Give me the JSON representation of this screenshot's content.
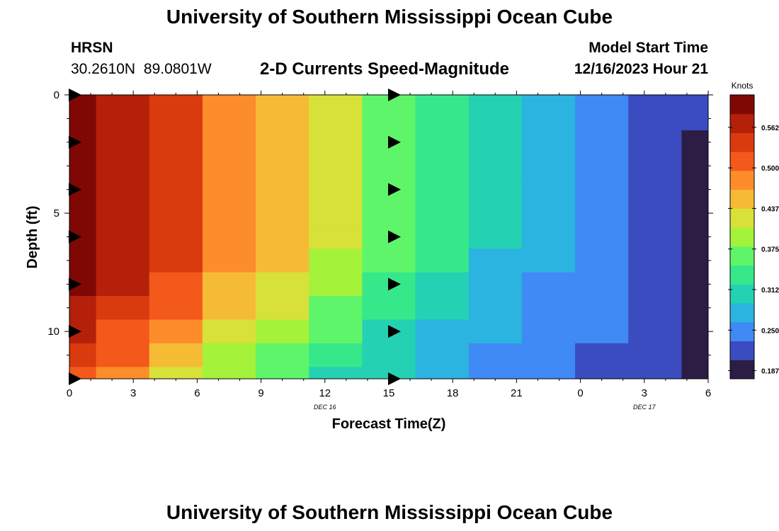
{
  "header": {
    "title": "University of Southern Mississippi Ocean Cube",
    "station": "HRSN",
    "coords": "30.2610N  89.0801W",
    "subtitle": "2-D Currents Speed-Magnitude",
    "model_label": "Model Start Time",
    "model_time": "12/16/2023 Hour 21"
  },
  "footer": {
    "title": "University of Southern Mississippi Ocean Cube"
  },
  "chart_data": {
    "type": "heatmap",
    "xlabel": "Forecast Time(Z)",
    "ylabel": "Depth (ft)",
    "x_tick_labels": [
      "0",
      "3",
      "6",
      "9",
      "12",
      "15",
      "18",
      "21",
      "0",
      "3",
      "6"
    ],
    "x_tick_hours": [
      0,
      3,
      6,
      9,
      12,
      15,
      18,
      21,
      24,
      27,
      30
    ],
    "x_range_hours": [
      0,
      30
    ],
    "date_labels": [
      {
        "label": "DEC 16",
        "hour": 12
      },
      {
        "label": "DEC 17",
        "hour": 27
      }
    ],
    "y_tick_labels": [
      "0",
      "5",
      "10"
    ],
    "y_tick_values": [
      0,
      5,
      10
    ],
    "y_range": [
      0,
      12
    ],
    "y_minor_step": 1,
    "time_columns_hours": [
      0,
      2.5,
      5,
      7.5,
      10,
      12.5,
      15,
      17.5,
      20,
      22.5,
      25,
      27.5,
      30
    ],
    "depth_rows_ft": [
      0,
      1,
      2,
      3,
      4,
      5,
      6,
      7,
      8,
      9,
      10,
      11,
      12
    ],
    "speed_knots": [
      [
        0.6,
        0.575,
        0.535,
        0.48,
        0.455,
        0.41,
        0.37,
        0.34,
        0.295,
        0.27,
        0.245,
        0.225,
        0.215
      ],
      [
        0.6,
        0.575,
        0.535,
        0.48,
        0.455,
        0.41,
        0.37,
        0.34,
        0.295,
        0.27,
        0.245,
        0.225,
        0.205
      ],
      [
        0.6,
        0.575,
        0.535,
        0.48,
        0.455,
        0.41,
        0.37,
        0.34,
        0.295,
        0.27,
        0.245,
        0.225,
        0.195
      ],
      [
        0.6,
        0.575,
        0.535,
        0.48,
        0.455,
        0.41,
        0.37,
        0.34,
        0.295,
        0.27,
        0.245,
        0.225,
        0.185
      ],
      [
        0.6,
        0.575,
        0.535,
        0.48,
        0.455,
        0.41,
        0.37,
        0.34,
        0.295,
        0.27,
        0.245,
        0.225,
        0.17
      ],
      [
        0.6,
        0.575,
        0.535,
        0.48,
        0.455,
        0.41,
        0.37,
        0.34,
        0.295,
        0.27,
        0.245,
        0.225,
        0.16
      ],
      [
        0.6,
        0.575,
        0.535,
        0.48,
        0.455,
        0.41,
        0.37,
        0.34,
        0.295,
        0.27,
        0.245,
        0.225,
        0.145
      ],
      [
        0.595,
        0.57,
        0.53,
        0.475,
        0.45,
        0.405,
        0.365,
        0.335,
        0.29,
        0.265,
        0.245,
        0.225,
        0.1
      ],
      [
        0.585,
        0.56,
        0.515,
        0.465,
        0.43,
        0.39,
        0.35,
        0.32,
        0.28,
        0.26,
        0.24,
        0.225,
        0.15
      ],
      [
        0.575,
        0.545,
        0.5,
        0.45,
        0.415,
        0.375,
        0.335,
        0.305,
        0.275,
        0.255,
        0.24,
        0.225,
        0.15
      ],
      [
        0.56,
        0.525,
        0.475,
        0.425,
        0.395,
        0.355,
        0.32,
        0.29,
        0.265,
        0.25,
        0.235,
        0.22,
        0.15
      ],
      [
        0.545,
        0.505,
        0.45,
        0.405,
        0.375,
        0.34,
        0.305,
        0.28,
        0.26,
        0.245,
        0.23,
        0.22,
        0.15
      ],
      [
        0.525,
        0.48,
        0.43,
        0.385,
        0.355,
        0.32,
        0.295,
        0.27,
        0.255,
        0.24,
        0.225,
        0.21,
        0.15
      ]
    ],
    "vectors": [
      {
        "hour": 0,
        "depth_ft": 0
      },
      {
        "hour": 0,
        "depth_ft": 2
      },
      {
        "hour": 0,
        "depth_ft": 4
      },
      {
        "hour": 0,
        "depth_ft": 6
      },
      {
        "hour": 0,
        "depth_ft": 8
      },
      {
        "hour": 0,
        "depth_ft": 10
      },
      {
        "hour": 0,
        "depth_ft": 12
      },
      {
        "hour": 15,
        "depth_ft": 0
      },
      {
        "hour": 15,
        "depth_ft": 2
      },
      {
        "hour": 15,
        "depth_ft": 4
      },
      {
        "hour": 15,
        "depth_ft": 6
      },
      {
        "hour": 15,
        "depth_ft": 8
      },
      {
        "hour": 15,
        "depth_ft": 10
      },
      {
        "hour": 15,
        "depth_ft": 12
      }
    ],
    "colorbar": {
      "label": "Knots",
      "tick_labels": [
        "0.5625",
        "0.5000",
        "0.4375",
        "0.3750",
        "0.3125",
        "0.2500",
        "0.1875"
      ],
      "tick_values": [
        0.5625,
        0.5,
        0.4375,
        0.375,
        0.3125,
        0.25,
        0.1875
      ],
      "range": [
        0.175,
        0.6125
      ],
      "colors": [
        "#2c1d45",
        "#3a4cc0",
        "#3f8af5",
        "#2ab4df",
        "#25d1b3",
        "#37e88a",
        "#5ff56a",
        "#a4f23a",
        "#d8e138",
        "#f6bb35",
        "#fd8d2a",
        "#f3591a",
        "#d93a0e",
        "#b4200a",
        "#7f0804"
      ]
    }
  }
}
